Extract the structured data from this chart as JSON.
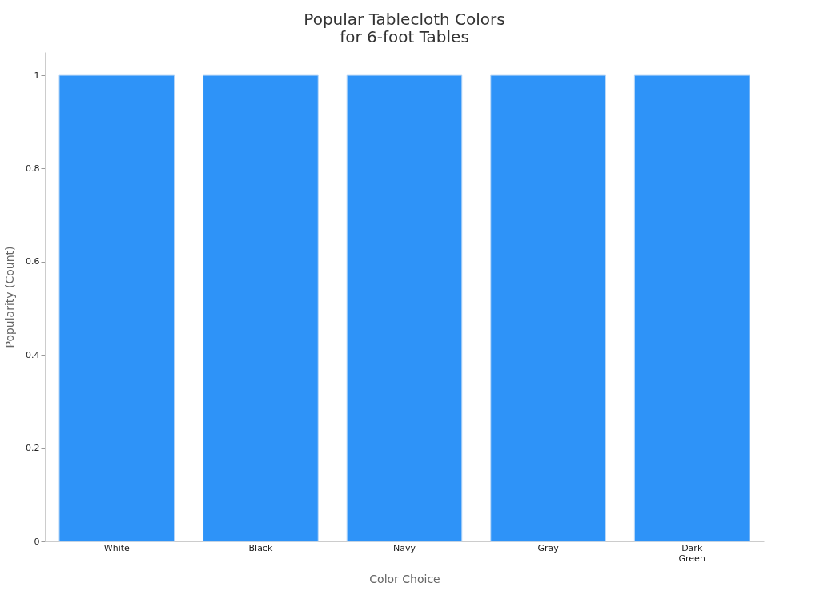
{
  "chart_data": {
    "type": "bar",
    "title": "Popular Tablecloth Colors\nfor 6-foot Tables",
    "xlabel": "Color Choice",
    "ylabel": "Popularity (Count)",
    "categories": [
      "White",
      "Black",
      "Navy",
      "Gray",
      "Dark Green"
    ],
    "values": [
      1,
      1,
      1,
      1,
      1
    ],
    "color": "#2e93f8",
    "ylim": [
      0,
      1.05
    ],
    "yticks": [
      0,
      0.2,
      0.4,
      0.6,
      0.8,
      1
    ],
    "grid": false
  }
}
